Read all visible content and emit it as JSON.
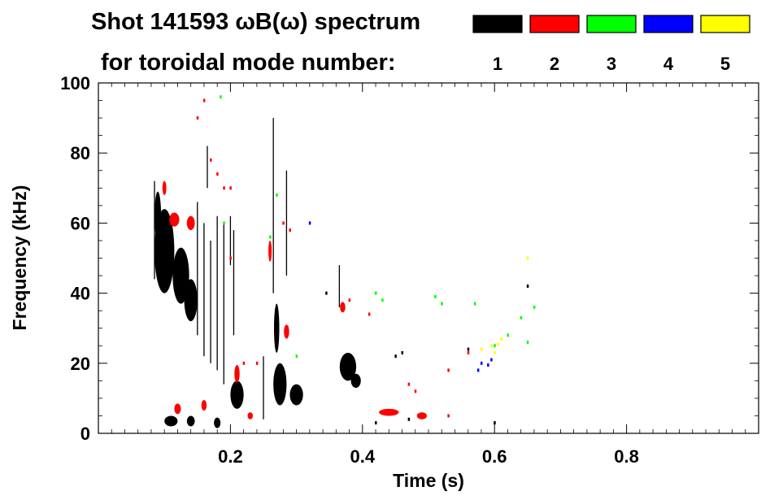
{
  "title_line1": "Shot 141593 ωB(ω) spectrum",
  "title_line2": "for toroidal mode number:",
  "chart_data": {
    "type": "scatter",
    "title": "Shot 141593 ωB(ω) spectrum",
    "xlabel": "Time (s)",
    "ylabel": "Frequency (kHz)",
    "xlim": [
      0.0,
      1.0
    ],
    "ylim": [
      0,
      100
    ],
    "x_ticks": [
      0.2,
      0.4,
      0.6,
      0.8
    ],
    "x_tick_labels": [
      "0.2",
      "0.4",
      "0.6",
      "0.8"
    ],
    "y_ticks": [
      0,
      20,
      40,
      60,
      80,
      100
    ],
    "y_tick_labels": [
      "0",
      "20",
      "40",
      "60",
      "80",
      "100"
    ],
    "grid": false,
    "legend": [
      {
        "label": "1",
        "color": "#000000"
      },
      {
        "label": "2",
        "color": "#ff0000"
      },
      {
        "label": "3",
        "color": "#00ff00"
      },
      {
        "label": "4",
        "color": "#0000ff"
      },
      {
        "label": "5",
        "color": "#ffff00"
      }
    ],
    "legend_placement": "top-right",
    "series": [
      {
        "name": "1",
        "color": "#000000",
        "blobs": [
          {
            "x": 0.1,
            "y": 52,
            "w": 0.03,
            "h": 24
          },
          {
            "x": 0.125,
            "y": 45,
            "w": 0.025,
            "h": 16
          },
          {
            "x": 0.14,
            "y": 38,
            "w": 0.02,
            "h": 12
          },
          {
            "x": 0.09,
            "y": 62,
            "w": 0.01,
            "h": 14
          },
          {
            "x": 0.21,
            "y": 11,
            "w": 0.02,
            "h": 8
          },
          {
            "x": 0.275,
            "y": 14,
            "w": 0.02,
            "h": 12
          },
          {
            "x": 0.3,
            "y": 11,
            "w": 0.02,
            "h": 6
          },
          {
            "x": 0.27,
            "y": 30,
            "w": 0.008,
            "h": 14
          },
          {
            "x": 0.378,
            "y": 19,
            "w": 0.025,
            "h": 8
          },
          {
            "x": 0.39,
            "y": 15,
            "w": 0.015,
            "h": 4
          },
          {
            "x": 0.11,
            "y": 3.5,
            "w": 0.02,
            "h": 3
          },
          {
            "x": 0.14,
            "y": 3.5,
            "w": 0.012,
            "h": 3
          },
          {
            "x": 0.18,
            "y": 3,
            "w": 0.01,
            "h": 3
          }
        ],
        "streaks": [
          {
            "x": 0.15,
            "y0": 28,
            "y1": 66
          },
          {
            "x": 0.16,
            "y0": 22,
            "y1": 60
          },
          {
            "x": 0.17,
            "y0": 20,
            "y1": 55
          },
          {
            "x": 0.18,
            "y0": 18,
            "y1": 62
          },
          {
            "x": 0.19,
            "y0": 14,
            "y1": 60
          },
          {
            "x": 0.2,
            "y0": 48,
            "y1": 62
          },
          {
            "x": 0.085,
            "y0": 44,
            "y1": 72
          },
          {
            "x": 0.25,
            "y0": 4,
            "y1": 22
          },
          {
            "x": 0.265,
            "y0": 40,
            "y1": 90
          },
          {
            "x": 0.285,
            "y0": 45,
            "y1": 75
          },
          {
            "x": 0.365,
            "y0": 36,
            "y1": 48
          },
          {
            "x": 0.165,
            "y0": 70,
            "y1": 82
          },
          {
            "x": 0.205,
            "y0": 28,
            "y1": 58
          }
        ],
        "points": [
          {
            "x": 0.47,
            "y": 4
          },
          {
            "x": 0.49,
            "y": 5
          },
          {
            "x": 0.45,
            "y": 22
          },
          {
            "x": 0.46,
            "y": 23
          },
          {
            "x": 0.345,
            "y": 40
          },
          {
            "x": 0.56,
            "y": 24
          },
          {
            "x": 0.65,
            "y": 42
          },
          {
            "x": 0.42,
            "y": 3
          },
          {
            "x": 0.6,
            "y": 3
          }
        ]
      },
      {
        "name": "2",
        "color": "#ff0000",
        "blobs": [
          {
            "x": 0.115,
            "y": 61,
            "w": 0.015,
            "h": 4
          },
          {
            "x": 0.14,
            "y": 60,
            "w": 0.012,
            "h": 4
          },
          {
            "x": 0.1,
            "y": 70,
            "w": 0.006,
            "h": 4
          },
          {
            "x": 0.21,
            "y": 17,
            "w": 0.008,
            "h": 5
          },
          {
            "x": 0.285,
            "y": 29,
            "w": 0.008,
            "h": 4
          },
          {
            "x": 0.37,
            "y": 36,
            "w": 0.008,
            "h": 3
          },
          {
            "x": 0.12,
            "y": 7,
            "w": 0.01,
            "h": 3
          },
          {
            "x": 0.16,
            "y": 8,
            "w": 0.008,
            "h": 3
          },
          {
            "x": 0.23,
            "y": 5,
            "w": 0.008,
            "h": 2
          },
          {
            "x": 0.44,
            "y": 6,
            "w": 0.03,
            "h": 2
          },
          {
            "x": 0.49,
            "y": 5,
            "w": 0.015,
            "h": 2
          },
          {
            "x": 0.26,
            "y": 52,
            "w": 0.005,
            "h": 6
          }
        ],
        "points": [
          {
            "x": 0.17,
            "y": 78
          },
          {
            "x": 0.18,
            "y": 74
          },
          {
            "x": 0.19,
            "y": 70
          },
          {
            "x": 0.2,
            "y": 50
          },
          {
            "x": 0.22,
            "y": 20
          },
          {
            "x": 0.24,
            "y": 20
          },
          {
            "x": 0.28,
            "y": 60
          },
          {
            "x": 0.29,
            "y": 58
          },
          {
            "x": 0.38,
            "y": 38
          },
          {
            "x": 0.41,
            "y": 34
          },
          {
            "x": 0.47,
            "y": 14
          },
          {
            "x": 0.48,
            "y": 12
          },
          {
            "x": 0.53,
            "y": 18
          },
          {
            "x": 0.56,
            "y": 23
          },
          {
            "x": 0.58,
            "y": 24
          },
          {
            "x": 0.53,
            "y": 5
          },
          {
            "x": 0.2,
            "y": 70
          },
          {
            "x": 0.15,
            "y": 90
          },
          {
            "x": 0.16,
            "y": 95
          }
        ]
      },
      {
        "name": "3",
        "color": "#00ff00",
        "points": [
          {
            "x": 0.185,
            "y": 96
          },
          {
            "x": 0.19,
            "y": 60
          },
          {
            "x": 0.27,
            "y": 68
          },
          {
            "x": 0.42,
            "y": 40
          },
          {
            "x": 0.43,
            "y": 38
          },
          {
            "x": 0.52,
            "y": 37
          },
          {
            "x": 0.51,
            "y": 39
          },
          {
            "x": 0.57,
            "y": 37
          },
          {
            "x": 0.64,
            "y": 33
          },
          {
            "x": 0.66,
            "y": 36
          },
          {
            "x": 0.65,
            "y": 26
          },
          {
            "x": 0.3,
            "y": 22
          },
          {
            "x": 0.26,
            "y": 56
          },
          {
            "x": 0.62,
            "y": 28
          },
          {
            "x": 0.6,
            "y": 25
          }
        ]
      },
      {
        "name": "4",
        "color": "#0000ff",
        "points": [
          {
            "x": 0.575,
            "y": 18
          },
          {
            "x": 0.59,
            "y": 19.5
          },
          {
            "x": 0.595,
            "y": 21
          },
          {
            "x": 0.32,
            "y": 60
          },
          {
            "x": 0.58,
            "y": 20
          }
        ]
      },
      {
        "name": "5",
        "color": "#ffff00",
        "points": [
          {
            "x": 0.58,
            "y": 24
          },
          {
            "x": 0.595,
            "y": 25
          },
          {
            "x": 0.605,
            "y": 25.5
          },
          {
            "x": 0.61,
            "y": 27
          },
          {
            "x": 0.65,
            "y": 50
          },
          {
            "x": 0.6,
            "y": 23
          }
        ]
      }
    ]
  }
}
